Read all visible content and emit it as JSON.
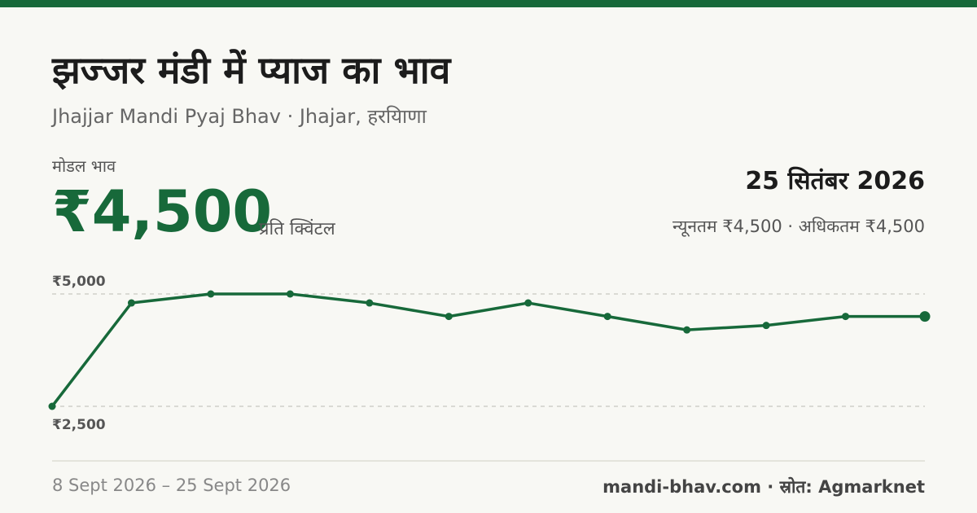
{
  "header": {
    "title": "झज्जर मंडी में प्याज का भाव",
    "subtitle": "Jhajjar Mandi Pyaj Bhav · Jhajar, हरयिाणा"
  },
  "price": {
    "label": "मोडल भाव",
    "value": "₹4,500",
    "unit": "प्रति क्विंटल"
  },
  "summary": {
    "date": "25 सितंबर 2026",
    "min": "न्यूनतम ₹4,500",
    "separator": " · ",
    "max": "अधिकतम ₹4,500"
  },
  "footer": {
    "range": "8 Sept 2026 – 25 Sept 2026",
    "site": "mandi-bhav.com",
    "separator": " · ",
    "source": "स्रोत: Agmarknet"
  },
  "colors": {
    "accent": "#17693a",
    "grid": "#bdbdb5"
  },
  "chart_data": {
    "type": "line",
    "x": [
      "8 Sept 2026",
      "",
      "",
      "",
      "",
      "",
      "",
      "",
      "",
      "",
      "",
      "25 Sept 2026"
    ],
    "y": [
      2500,
      4800,
      5000,
      5000,
      4800,
      4500,
      4800,
      4500,
      4200,
      4300,
      4500,
      4500
    ],
    "ylim": [
      2500,
      5000
    ],
    "yticks": [
      5000,
      2500
    ],
    "ytick_labels": [
      "₹5,000",
      "₹2,500"
    ],
    "grid": "dashed horizontal at ticks",
    "title": "",
    "xlabel": "",
    "ylabel": ""
  }
}
